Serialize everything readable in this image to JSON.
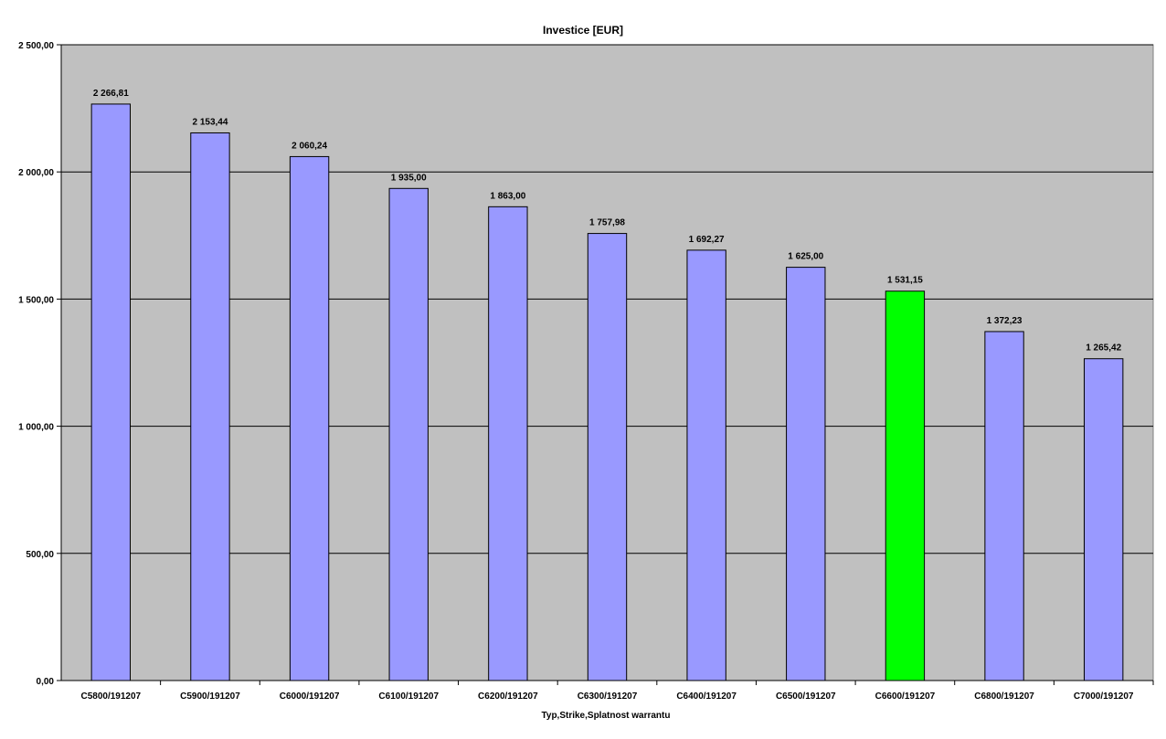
{
  "chart_data": {
    "type": "bar",
    "title": "Investice [EUR]",
    "xlabel": "Typ,Strike,Splatnost warrantu",
    "ylabel": "",
    "ylim": [
      0,
      2500
    ],
    "yticks": [
      0,
      500,
      1000,
      1500,
      2000,
      2500
    ],
    "ytick_labels": [
      "0,00",
      "500,00",
      "1 000,00",
      "1 500,00",
      "2 000,00",
      "2 500,00"
    ],
    "categories": [
      "C5800/191207",
      "C5900/191207",
      "C6000/191207",
      "C6100/191207",
      "C6200/191207",
      "C6300/191207",
      "C6400/191207",
      "C6500/191207",
      "C6600/191207",
      "C6800/191207",
      "C7000/191207"
    ],
    "values": [
      2266.81,
      2153.44,
      2060.24,
      1935.0,
      1863.0,
      1757.98,
      1692.27,
      1625.0,
      1531.15,
      1372.23,
      1265.42
    ],
    "value_labels": [
      "2 266,81",
      "2 153,44",
      "2 060,24",
      "1 935,00",
      "1 863,00",
      "1 757,98",
      "1 692,27",
      "1 625,00",
      "1 531,15",
      "1 372,23",
      "1 265,42"
    ],
    "highlight_index": 8,
    "grid": true,
    "legend": "none",
    "colors": {
      "plot_background": "#c0c0c0",
      "bar": "#9999ff",
      "highlight_bar": "#00ff00",
      "gridline": "#000000"
    }
  }
}
